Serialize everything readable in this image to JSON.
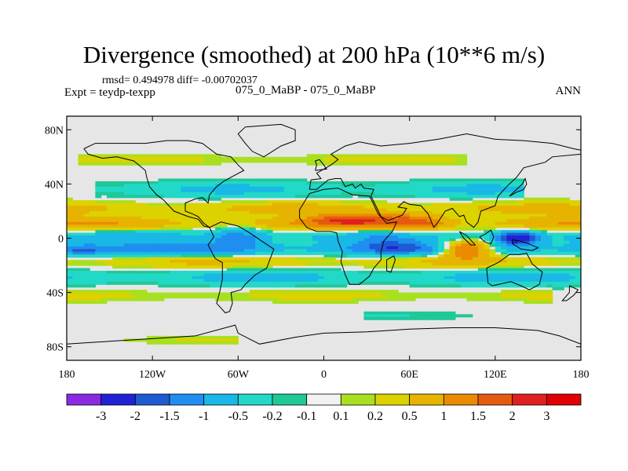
{
  "header": {
    "title": "Divergence (smoothed) at 200 hPa (10**6 m/s)",
    "stats": "rmsd= 0.494978 diff= -0.00702037",
    "expt": "Expt = teydp-texpp",
    "runs": "075_0_MaBP - 075_0_MaBP",
    "season": "ANN"
  },
  "map": {
    "lon_range": [
      -180,
      180
    ],
    "lat_range": [
      -90,
      90
    ],
    "background_color": "#e6e6e6",
    "coast_color": "#000000",
    "lat_ticks": [
      {
        "value": 80,
        "label": "80N"
      },
      {
        "value": 40,
        "label": "40N"
      },
      {
        "value": 0,
        "label": "0"
      },
      {
        "value": -40,
        "label": "40S"
      },
      {
        "value": -80,
        "label": "80S"
      }
    ],
    "lon_ticks": [
      {
        "value": -180,
        "label": "180"
      },
      {
        "value": -120,
        "label": "120W"
      },
      {
        "value": -60,
        "label": "60W"
      },
      {
        "value": 0,
        "label": "0"
      },
      {
        "value": 60,
        "label": "60E"
      },
      {
        "value": 120,
        "label": "120E"
      },
      {
        "value": 180,
        "label": "180"
      }
    ],
    "bands": [
      {
        "lat": 58,
        "half_width": 4,
        "lon_from": -170,
        "lon_to": 100,
        "amp": 0.3
      },
      {
        "lat": 36,
        "half_width": 6,
        "lon_from": -160,
        "lon_to": 140,
        "amp": -0.6
      },
      {
        "lat": 22,
        "half_width": 5,
        "lon_from": -180,
        "lon_to": 180,
        "amp": 0.7
      },
      {
        "lat": 11,
        "half_width": 5,
        "lon_from": -180,
        "lon_to": 180,
        "amp": 1.0
      },
      {
        "lat": 1,
        "half_width": 5,
        "lon_from": -180,
        "lon_to": 180,
        "amp": -0.7
      },
      {
        "lat": -8,
        "half_width": 5,
        "lon_from": -180,
        "lon_to": 180,
        "amp": -1.3
      },
      {
        "lat": -17,
        "half_width": 5,
        "lon_from": -180,
        "lon_to": 180,
        "amp": 0.6
      },
      {
        "lat": -29,
        "half_width": 6,
        "lon_from": -180,
        "lon_to": 180,
        "amp": -0.7
      },
      {
        "lat": -42,
        "half_width": 5,
        "lon_from": -180,
        "lon_to": 160,
        "amp": 0.3
      },
      {
        "lat": -57,
        "half_width": 4,
        "lon_from": 30,
        "lon_to": 120,
        "amp": -0.2
      },
      {
        "lat": -75,
        "half_width": 3,
        "lon_from": -140,
        "lon_to": -60,
        "amp": 0.2
      }
    ],
    "blobs": [
      {
        "lon": 100,
        "lat": -8,
        "rlon": 18,
        "rlat": 6,
        "amp": 2.6
      },
      {
        "lon": 135,
        "lat": 0,
        "rlon": 14,
        "rlat": 5,
        "amp": -2.4
      },
      {
        "lon": 20,
        "lat": 14,
        "rlon": 30,
        "rlat": 5,
        "amp": 1.4
      },
      {
        "lon": 65,
        "lat": 12,
        "rlon": 20,
        "rlat": 6,
        "amp": 1.2
      },
      {
        "lon": -60,
        "lat": 0,
        "rlon": 18,
        "rlat": 8,
        "amp": -1.0
      },
      {
        "lon": -170,
        "lat": -9,
        "rlon": 15,
        "rlat": 4,
        "amp": -1.0
      },
      {
        "lon": 45,
        "lat": -5,
        "rlon": 20,
        "rlat": 6,
        "amp": -0.8
      }
    ],
    "coastlines": [
      {
        "name": "north-america",
        "points": [
          [
            -168,
            66
          ],
          [
            -160,
            70
          ],
          [
            -140,
            70
          ],
          [
            -125,
            70
          ],
          [
            -110,
            72
          ],
          [
            -95,
            72
          ],
          [
            -85,
            70
          ],
          [
            -80,
            66
          ],
          [
            -75,
            62
          ],
          [
            -65,
            60
          ],
          [
            -60,
            54
          ],
          [
            -56,
            50
          ],
          [
            -65,
            45
          ],
          [
            -70,
            42
          ],
          [
            -75,
            38
          ],
          [
            -80,
            32
          ],
          [
            -81,
            26
          ],
          [
            -85,
            30
          ],
          [
            -90,
            29
          ],
          [
            -97,
            26
          ],
          [
            -97,
            20
          ],
          [
            -92,
            18
          ],
          [
            -88,
            16
          ],
          [
            -84,
            11
          ],
          [
            -80,
            8
          ],
          [
            -84,
            9
          ],
          [
            -88,
            14
          ],
          [
            -95,
            16
          ],
          [
            -105,
            20
          ],
          [
            -112,
            28
          ],
          [
            -117,
            32
          ],
          [
            -122,
            38
          ],
          [
            -124,
            45
          ],
          [
            -125,
            50
          ],
          [
            -133,
            57
          ],
          [
            -145,
            60
          ],
          [
            -155,
            59
          ],
          [
            -165,
            62
          ],
          [
            -168,
            66
          ]
        ]
      },
      {
        "name": "greenland",
        "points": [
          [
            -55,
            82
          ],
          [
            -30,
            84
          ],
          [
            -20,
            80
          ],
          [
            -20,
            72
          ],
          [
            -30,
            68
          ],
          [
            -42,
            60
          ],
          [
            -50,
            64
          ],
          [
            -55,
            70
          ],
          [
            -60,
            77
          ],
          [
            -55,
            82
          ]
        ]
      },
      {
        "name": "south-america",
        "points": [
          [
            -80,
            8
          ],
          [
            -77,
            1
          ],
          [
            -81,
            -5
          ],
          [
            -76,
            -15
          ],
          [
            -71,
            -18
          ],
          [
            -71,
            -30
          ],
          [
            -73,
            -40
          ],
          [
            -75,
            -48
          ],
          [
            -69,
            -55
          ],
          [
            -66,
            -54
          ],
          [
            -64,
            -48
          ],
          [
            -65,
            -40
          ],
          [
            -58,
            -38
          ],
          [
            -55,
            -34
          ],
          [
            -48,
            -27
          ],
          [
            -40,
            -22
          ],
          [
            -35,
            -8
          ],
          [
            -45,
            -1
          ],
          [
            -52,
            4
          ],
          [
            -60,
            9
          ],
          [
            -72,
            12
          ],
          [
            -80,
            8
          ]
        ]
      },
      {
        "name": "eurasia",
        "points": [
          [
            -10,
            36
          ],
          [
            -9,
            43
          ],
          [
            -2,
            44
          ],
          [
            -5,
            48
          ],
          [
            5,
            54
          ],
          [
            10,
            58
          ],
          [
            5,
            62
          ],
          [
            15,
            68
          ],
          [
            25,
            71
          ],
          [
            40,
            68
          ],
          [
            60,
            70
          ],
          [
            80,
            73
          ],
          [
            100,
            77
          ],
          [
            120,
            73
          ],
          [
            140,
            72
          ],
          [
            160,
            70
          ],
          [
            175,
            66
          ],
          [
            180,
            65
          ],
          [
            180,
            62
          ],
          [
            160,
            60
          ],
          [
            155,
            56
          ],
          [
            140,
            52
          ],
          [
            135,
            45
          ],
          [
            128,
            38
          ],
          [
            122,
            31
          ],
          [
            120,
            24
          ],
          [
            110,
            20
          ],
          [
            108,
            12
          ],
          [
            105,
            8
          ],
          [
            100,
            12
          ],
          [
            98,
            17
          ],
          [
            95,
            16
          ],
          [
            90,
            22
          ],
          [
            85,
            20
          ],
          [
            80,
            12
          ],
          [
            77,
            8
          ],
          [
            73,
            18
          ],
          [
            68,
            24
          ],
          [
            60,
            25
          ],
          [
            56,
            27
          ],
          [
            52,
            23
          ],
          [
            58,
            22
          ],
          [
            55,
            17
          ],
          [
            45,
            13
          ],
          [
            40,
            16
          ],
          [
            35,
            27
          ],
          [
            33,
            31
          ],
          [
            35,
            36
          ],
          [
            28,
            37
          ],
          [
            26,
            40
          ],
          [
            22,
            37
          ],
          [
            20,
            40
          ],
          [
            15,
            38
          ],
          [
            12,
            44
          ],
          [
            8,
            44
          ],
          [
            3,
            43
          ],
          [
            -5,
            36
          ],
          [
            -10,
            36
          ]
        ]
      },
      {
        "name": "africa",
        "points": [
          [
            -17,
            21
          ],
          [
            -17,
            15
          ],
          [
            -12,
            8
          ],
          [
            -5,
            5
          ],
          [
            5,
            5
          ],
          [
            9,
            4
          ],
          [
            10,
            -2
          ],
          [
            13,
            -10
          ],
          [
            12,
            -17
          ],
          [
            15,
            -27
          ],
          [
            18,
            -34
          ],
          [
            25,
            -34
          ],
          [
            32,
            -28
          ],
          [
            35,
            -22
          ],
          [
            40,
            -16
          ],
          [
            40,
            -10
          ],
          [
            42,
            -2
          ],
          [
            48,
            5
          ],
          [
            51,
            12
          ],
          [
            44,
            11
          ],
          [
            38,
            18
          ],
          [
            34,
            27
          ],
          [
            32,
            31
          ],
          [
            20,
            32
          ],
          [
            10,
            37
          ],
          [
            0,
            36
          ],
          [
            -10,
            33
          ],
          [
            -17,
            21
          ]
        ]
      },
      {
        "name": "madagascar",
        "points": [
          [
            44,
            -16
          ],
          [
            49,
            -13
          ],
          [
            50,
            -16
          ],
          [
            47,
            -25
          ],
          [
            44,
            -24
          ],
          [
            44,
            -16
          ]
        ]
      },
      {
        "name": "australia",
        "points": [
          [
            114,
            -22
          ],
          [
            122,
            -18
          ],
          [
            130,
            -12
          ],
          [
            137,
            -12
          ],
          [
            142,
            -11
          ],
          [
            146,
            -19
          ],
          [
            153,
            -25
          ],
          [
            151,
            -34
          ],
          [
            144,
            -38
          ],
          [
            138,
            -35
          ],
          [
            131,
            -32
          ],
          [
            118,
            -35
          ],
          [
            115,
            -33
          ],
          [
            114,
            -22
          ]
        ]
      },
      {
        "name": "antarctica",
        "points": [
          [
            -180,
            -78
          ],
          [
            -150,
            -76
          ],
          [
            -120,
            -74
          ],
          [
            -90,
            -72
          ],
          [
            -62,
            -64
          ],
          [
            -60,
            -70
          ],
          [
            -45,
            -78
          ],
          [
            -20,
            -73
          ],
          [
            0,
            -70
          ],
          [
            30,
            -69
          ],
          [
            60,
            -67
          ],
          [
            90,
            -66
          ],
          [
            120,
            -66
          ],
          [
            150,
            -68
          ],
          [
            165,
            -72
          ],
          [
            180,
            -78
          ]
        ]
      },
      {
        "name": "new-zealand",
        "points": [
          [
            172,
            -35
          ],
          [
            178,
            -38
          ],
          [
            175,
            -42
          ],
          [
            170,
            -46
          ],
          [
            167,
            -46
          ],
          [
            172,
            -40
          ],
          [
            172,
            -35
          ]
        ]
      },
      {
        "name": "uk",
        "points": [
          [
            -6,
            50
          ],
          [
            2,
            51
          ],
          [
            0,
            54
          ],
          [
            -3,
            58
          ],
          [
            -6,
            57
          ],
          [
            -5,
            54
          ],
          [
            -6,
            50
          ]
        ]
      },
      {
        "name": "japan",
        "points": [
          [
            130,
            31
          ],
          [
            135,
            34
          ],
          [
            140,
            36
          ],
          [
            142,
            40
          ],
          [
            141,
            44
          ],
          [
            139,
            40
          ],
          [
            135,
            36
          ],
          [
            130,
            31
          ]
        ]
      },
      {
        "name": "borneo",
        "points": [
          [
            109,
            1
          ],
          [
            113,
            -3
          ],
          [
            117,
            -4
          ],
          [
            119,
            1
          ],
          [
            117,
            6
          ],
          [
            113,
            3
          ],
          [
            109,
            1
          ]
        ]
      },
      {
        "name": "sumatra",
        "points": [
          [
            95,
            5
          ],
          [
            100,
            2
          ],
          [
            106,
            -5
          ],
          [
            103,
            -5
          ],
          [
            98,
            0
          ],
          [
            95,
            5
          ]
        ]
      },
      {
        "name": "new-guinea",
        "points": [
          [
            132,
            -1
          ],
          [
            141,
            -3
          ],
          [
            150,
            -7
          ],
          [
            146,
            -9
          ],
          [
            138,
            -8
          ],
          [
            132,
            -4
          ],
          [
            132,
            -1
          ]
        ]
      }
    ]
  },
  "colorbar": {
    "labels": [
      "-3",
      "-2",
      "-1.5",
      "-1",
      "-0.5",
      "-0.2",
      "-0.1",
      "0.1",
      "0.2",
      "0.5",
      "1",
      "1.5",
      "2",
      "3"
    ],
    "levels": [
      -3,
      -2,
      -1.5,
      -1,
      -0.5,
      -0.2,
      -0.1,
      0.1,
      0.2,
      0.5,
      1,
      1.5,
      2,
      3
    ],
    "colors": [
      "#8a2be2",
      "#2121d6",
      "#1e5ad2",
      "#1f8ef0",
      "#19b8e6",
      "#22d8c6",
      "#20c898",
      "#f2f2f2",
      "#a8e020",
      "#dcd200",
      "#e6b400",
      "#eb8c00",
      "#e55a10",
      "#e02020",
      "#e00000"
    ]
  }
}
